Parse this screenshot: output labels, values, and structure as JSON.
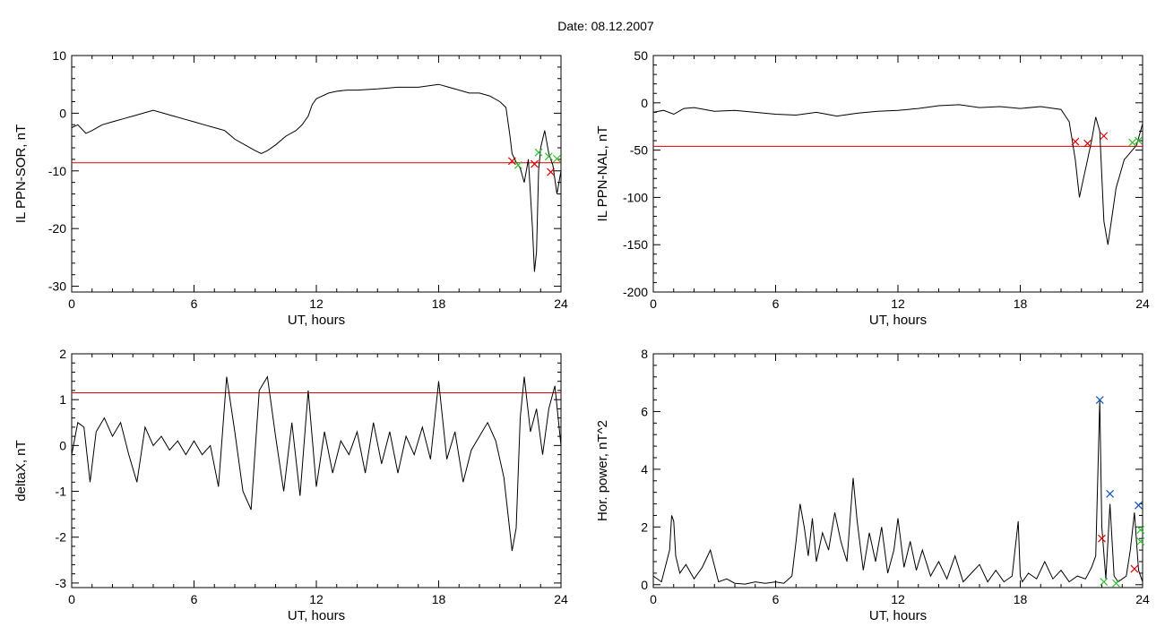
{
  "title": "Date:  08.12.2007",
  "colors": {
    "trace": "#000000",
    "threshold": "#e00000",
    "highlight": "#1050c0",
    "marker_red": "#e00000",
    "marker_green": "#30c030",
    "marker_blue": "#1050c0"
  },
  "chart_data": [
    {
      "id": "il-ppn-sor",
      "type": "line",
      "xlabel": "UT, hours",
      "ylabel": "IL PPN-SOR, nT",
      "xlim": [
        0,
        24
      ],
      "ylim": [
        -31,
        10
      ],
      "x_ticks": [
        0,
        6,
        12,
        18,
        24
      ],
      "y_ticks": [
        10,
        0,
        -10,
        -20,
        -30
      ],
      "grid": false,
      "threshold": -8.6,
      "series": [
        {
          "x": [
            0,
            0.3,
            0.7,
            1,
            1.5,
            2,
            2.5,
            3,
            3.5,
            4,
            4.5,
            5,
            5.5,
            6,
            6.5,
            7,
            7.5,
            8,
            8.5,
            9,
            9.3,
            9.6,
            10,
            10.5,
            11,
            11.3,
            11.6,
            11.8,
            12,
            12.3,
            12.6,
            13,
            13.5,
            14,
            15,
            16,
            17,
            18,
            18.5,
            19,
            19.5,
            20,
            20.5,
            21,
            21.3,
            21.5,
            21.6,
            21.8,
            22,
            22.2,
            22.4,
            22.6,
            22.7,
            22.8,
            22.9,
            23,
            23.2,
            23.4,
            23.6,
            23.8,
            24
          ],
          "values": [
            -2.5,
            -2,
            -3.5,
            -3,
            -2,
            -1.5,
            -1,
            -0.5,
            0,
            0.5,
            0,
            -0.5,
            -1,
            -1.5,
            -2,
            -2.5,
            -3,
            -4.5,
            -5.5,
            -6.5,
            -7,
            -6.5,
            -5.5,
            -4,
            -3,
            -2,
            -0.5,
            1.5,
            2.5,
            3,
            3.5,
            3.8,
            4,
            4,
            4.2,
            4.5,
            4.5,
            5,
            4.5,
            4,
            3.5,
            3.5,
            3,
            2,
            1,
            -4,
            -7,
            -8.5,
            -9.5,
            -12,
            -8,
            -20,
            -27.5,
            -24,
            -10,
            -6,
            -3,
            -7,
            -9,
            -14,
            -10
          ]
        }
      ],
      "markers": [
        {
          "x": 21.6,
          "y": -8.3,
          "color": "red"
        },
        {
          "x": 21.9,
          "y": -9.0,
          "color": "green"
        },
        {
          "x": 22.7,
          "y": -8.8,
          "color": "red"
        },
        {
          "x": 22.9,
          "y": -6.8,
          "color": "green"
        },
        {
          "x": 23.4,
          "y": -7.5,
          "color": "green"
        },
        {
          "x": 23.5,
          "y": -10.2,
          "color": "red"
        },
        {
          "x": 23.8,
          "y": -7.9,
          "color": "green"
        }
      ]
    },
    {
      "id": "il-ppn-nal",
      "type": "line",
      "xlabel": "UT, hours",
      "ylabel": "IL PPN-NAL, nT",
      "xlim": [
        0,
        24
      ],
      "ylim": [
        -200,
        50
      ],
      "x_ticks": [
        0,
        6,
        12,
        18,
        24
      ],
      "y_ticks": [
        50,
        0,
        -50,
        -100,
        -150,
        -200
      ],
      "grid": false,
      "threshold": -46,
      "series": [
        {
          "x": [
            0,
            0.5,
            1,
            1.5,
            2,
            3,
            4,
            5,
            6,
            7,
            8,
            9,
            10,
            11,
            12,
            13,
            14,
            15,
            16,
            17,
            18,
            19,
            20,
            20.4,
            20.7,
            20.9,
            21.1,
            21.3,
            21.5,
            21.7,
            21.9,
            22.1,
            22.3,
            22.5,
            22.7,
            22.9,
            23.1,
            23.3,
            23.5,
            23.7,
            24
          ],
          "values": [
            -10,
            -8,
            -12,
            -6,
            -5,
            -9,
            -8,
            -10,
            -12,
            -13,
            -10,
            -14,
            -11,
            -9,
            -8,
            -6,
            -3,
            -2,
            -5,
            -4,
            -6,
            -4,
            -7,
            -20,
            -60,
            -100,
            -80,
            -60,
            -40,
            -15,
            -30,
            -125,
            -150,
            -120,
            -90,
            -75,
            -60,
            -55,
            -50,
            -45,
            -22
          ]
        }
      ],
      "markers": [
        {
          "x": 20.7,
          "y": -41,
          "color": "red"
        },
        {
          "x": 21.3,
          "y": -43,
          "color": "red"
        },
        {
          "x": 22.1,
          "y": -35,
          "color": "red"
        },
        {
          "x": 23.5,
          "y": -42,
          "color": "green"
        },
        {
          "x": 23.8,
          "y": -40,
          "color": "green"
        }
      ]
    },
    {
      "id": "deltax",
      "type": "line",
      "xlabel": "UT, hours",
      "ylabel": "deltaX, nT",
      "xlim": [
        0,
        24
      ],
      "ylim": [
        -3.1,
        2.0
      ],
      "x_ticks": [
        0,
        6,
        12,
        18,
        24
      ],
      "y_ticks": [
        2,
        1,
        0,
        -1,
        -2,
        -3
      ],
      "grid": false,
      "threshold": 1.15,
      "series": [
        {
          "x": [
            0,
            0.3,
            0.6,
            0.9,
            1.2,
            1.6,
            2,
            2.4,
            2.8,
            3.2,
            3.6,
            4,
            4.4,
            4.8,
            5.2,
            5.6,
            6,
            6.4,
            6.8,
            7.2,
            7.6,
            8,
            8.4,
            8.8,
            9.2,
            9.6,
            10,
            10.4,
            10.8,
            11.2,
            11.6,
            12,
            12.4,
            12.8,
            13.2,
            13.6,
            14,
            14.4,
            14.8,
            15.2,
            15.6,
            16,
            16.4,
            16.8,
            17.2,
            17.6,
            18,
            18.4,
            18.8,
            19.2,
            19.6,
            20,
            20.4,
            20.8,
            21.2,
            21.6,
            21.8,
            22,
            22.2,
            22.5,
            22.8,
            23.1,
            23.4,
            23.7,
            24
          ],
          "values": [
            -0.2,
            0.5,
            0.4,
            -0.8,
            0.3,
            0.6,
            0.2,
            0.5,
            -0.2,
            -0.8,
            0.4,
            0,
            0.2,
            -0.1,
            0.1,
            -0.2,
            0.1,
            -0.2,
            0,
            -0.9,
            1.5,
            0.3,
            -1,
            -1.4,
            1.2,
            1.5,
            0.2,
            -1,
            0.5,
            -1.1,
            1.2,
            -0.9,
            0.3,
            -0.6,
            0.1,
            -0.2,
            0.3,
            -0.6,
            0.5,
            -0.4,
            0.3,
            -0.6,
            0.2,
            -0.2,
            0.4,
            -0.3,
            1.4,
            -0.3,
            0.3,
            -0.8,
            -0.1,
            0.2,
            0.5,
            0.1,
            -0.7,
            -2.3,
            -1.8,
            0.6,
            1.5,
            0.3,
            0.8,
            -0.2,
            0.8,
            1.3,
            0
          ]
        }
      ]
    },
    {
      "id": "hor-power",
      "type": "line",
      "xlabel": "UT, hours",
      "ylabel": "Hor. power, nT^2",
      "xlim": [
        0,
        24
      ],
      "ylim": [
        -0.1,
        8
      ],
      "x_ticks": [
        0,
        6,
        12,
        18,
        24
      ],
      "y_ticks": [
        8,
        6,
        4,
        2,
        0
      ],
      "grid": false,
      "series": [
        {
          "x": [
            0,
            0.4,
            0.8,
            0.9,
            1,
            1.1,
            1.3,
            1.6,
            2,
            2.4,
            2.8,
            3.2,
            3.6,
            4,
            4.5,
            5,
            5.5,
            6,
            6.4,
            6.8,
            7,
            7.2,
            7.4,
            7.6,
            7.8,
            8,
            8.3,
            8.6,
            8.9,
            9.2,
            9.5,
            9.8,
            10,
            10.3,
            10.6,
            10.9,
            11.2,
            11.5,
            11.8,
            12,
            12.3,
            12.6,
            12.9,
            13.2,
            13.6,
            14,
            14.4,
            14.8,
            15.2,
            15.6,
            16,
            16.4,
            16.8,
            17.2,
            17.6,
            17.9,
            18,
            18.1,
            18.4,
            18.8,
            19.2,
            19.6,
            20,
            20.4,
            20.8,
            21.2,
            21.5,
            21.7,
            21.9,
            22,
            22.2,
            22.4,
            22.6,
            22.8,
            23,
            23.2,
            23.4,
            23.6,
            23.8,
            24
          ],
          "values": [
            0.3,
            0.1,
            1.2,
            2.4,
            2.2,
            1.0,
            0.4,
            0.7,
            0.2,
            0.6,
            1.2,
            0.1,
            0.2,
            0.05,
            0.02,
            0.1,
            0.05,
            0.1,
            0.05,
            0.3,
            1.5,
            2.8,
            2.0,
            1.0,
            2.3,
            0.8,
            1.8,
            1.2,
            2.5,
            1.5,
            0.8,
            3.7,
            2.2,
            0.5,
            1.8,
            0.8,
            2.0,
            0.4,
            1.2,
            2.3,
            0.6,
            1.5,
            0.5,
            1.2,
            0.3,
            0.8,
            0.2,
            1.0,
            0.1,
            0.4,
            0.7,
            0.1,
            0.5,
            0.1,
            0.3,
            2.2,
            0.3,
            0.1,
            0.4,
            0.2,
            0.8,
            0.2,
            0.5,
            0.1,
            0.3,
            0.2,
            0.6,
            1.0,
            6.4,
            2.0,
            0.2,
            2.8,
            0.3,
            0.1,
            0.2,
            0.3,
            1.2,
            2.5,
            0.5,
            0.1
          ]
        }
      ],
      "markers": [
        {
          "x": 21.9,
          "y": 6.4,
          "color": "blue"
        },
        {
          "x": 22.4,
          "y": 3.15,
          "color": "blue"
        },
        {
          "x": 23.8,
          "y": 2.75,
          "color": "blue"
        },
        {
          "x": 22.0,
          "y": 1.6,
          "color": "red"
        },
        {
          "x": 23.6,
          "y": 0.55,
          "color": "red"
        },
        {
          "x": 23.9,
          "y": 1.5,
          "color": "green"
        },
        {
          "x": 23.9,
          "y": 1.9,
          "color": "green"
        },
        {
          "x": 22.1,
          "y": 0.1,
          "color": "green"
        },
        {
          "x": 22.7,
          "y": 0.05,
          "color": "green"
        }
      ]
    }
  ]
}
